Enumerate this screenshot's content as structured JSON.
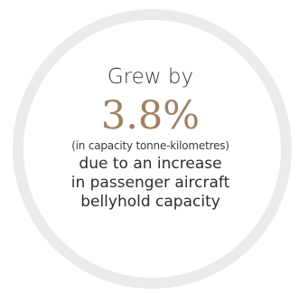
{
  "callout": {
    "headline": "Grew by",
    "value": "3.8%",
    "note": "(in capacity tonne-kilometres)",
    "description_lines": [
      "due to an increase",
      "in passenger aircraft",
      "bellyhold capacity"
    ]
  },
  "colors": {
    "ring": "#ebebeb",
    "accent": "#a08163",
    "text": "#333333"
  }
}
